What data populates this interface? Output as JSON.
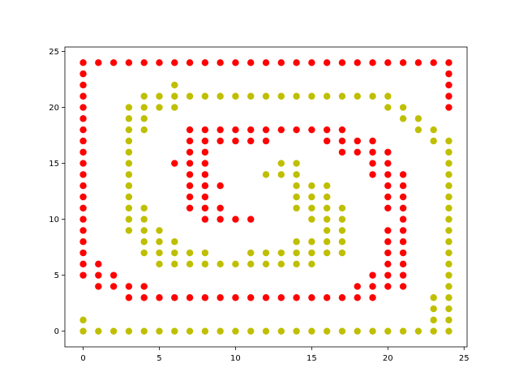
{
  "chart_data": {
    "type": "scatter",
    "title": "",
    "xlabel": "",
    "ylabel": "",
    "xlim": [
      -1.2,
      25.2
    ],
    "ylim": [
      -1.4,
      25.4
    ],
    "xticks": [
      0,
      5,
      10,
      15,
      20,
      25
    ],
    "yticks": [
      0,
      5,
      10,
      15,
      20,
      25
    ],
    "grid": false,
    "series": [
      {
        "color": "#ff0000",
        "points": [
          [
            0,
            24
          ],
          [
            1,
            24
          ],
          [
            2,
            24
          ],
          [
            3,
            24
          ],
          [
            4,
            24
          ],
          [
            5,
            24
          ],
          [
            6,
            24
          ],
          [
            7,
            24
          ],
          [
            8,
            24
          ],
          [
            9,
            24
          ],
          [
            10,
            24
          ],
          [
            11,
            24
          ],
          [
            12,
            24
          ],
          [
            13,
            24
          ],
          [
            14,
            24
          ],
          [
            15,
            24
          ],
          [
            16,
            24
          ],
          [
            17,
            24
          ],
          [
            18,
            24
          ],
          [
            19,
            24
          ],
          [
            20,
            24
          ],
          [
            21,
            24
          ],
          [
            22,
            24
          ],
          [
            23,
            24
          ],
          [
            24,
            24
          ],
          [
            24,
            23
          ],
          [
            24,
            22
          ],
          [
            24,
            21
          ],
          [
            24,
            20
          ],
          [
            0,
            23
          ],
          [
            0,
            22
          ],
          [
            0,
            21
          ],
          [
            0,
            20
          ],
          [
            0,
            19
          ],
          [
            0,
            18
          ],
          [
            0,
            17
          ],
          [
            0,
            16
          ],
          [
            0,
            15
          ],
          [
            0,
            14
          ],
          [
            0,
            13
          ],
          [
            0,
            12
          ],
          [
            0,
            11
          ],
          [
            0,
            10
          ],
          [
            0,
            9
          ],
          [
            0,
            8
          ],
          [
            0,
            7
          ],
          [
            0,
            6
          ],
          [
            0,
            5
          ],
          [
            1,
            6
          ],
          [
            1,
            5
          ],
          [
            1,
            4
          ],
          [
            2,
            5
          ],
          [
            2,
            4
          ],
          [
            3,
            4
          ],
          [
            3,
            3
          ],
          [
            4,
            4
          ],
          [
            4,
            3
          ],
          [
            5,
            3
          ],
          [
            6,
            3
          ],
          [
            7,
            3
          ],
          [
            8,
            3
          ],
          [
            9,
            3
          ],
          [
            10,
            3
          ],
          [
            11,
            3
          ],
          [
            12,
            3
          ],
          [
            13,
            3
          ],
          [
            14,
            3
          ],
          [
            15,
            3
          ],
          [
            16,
            3
          ],
          [
            17,
            3
          ],
          [
            18,
            3
          ],
          [
            19,
            3
          ],
          [
            18,
            4
          ],
          [
            19,
            5
          ],
          [
            19,
            4
          ],
          [
            20,
            6
          ],
          [
            20,
            5
          ],
          [
            20,
            4
          ],
          [
            21,
            5
          ],
          [
            21,
            4
          ],
          [
            20,
            9
          ],
          [
            20,
            8
          ],
          [
            20,
            7
          ],
          [
            21,
            9
          ],
          [
            21,
            8
          ],
          [
            21,
            7
          ],
          [
            21,
            6
          ],
          [
            20,
            16
          ],
          [
            20,
            15
          ],
          [
            20,
            14
          ],
          [
            20,
            13
          ],
          [
            20,
            12
          ],
          [
            20,
            11
          ],
          [
            21,
            14
          ],
          [
            21,
            13
          ],
          [
            21,
            12
          ],
          [
            21,
            11
          ],
          [
            21,
            10
          ],
          [
            7,
            18
          ],
          [
            8,
            18
          ],
          [
            9,
            18
          ],
          [
            10,
            18
          ],
          [
            11,
            18
          ],
          [
            12,
            18
          ],
          [
            13,
            18
          ],
          [
            14,
            18
          ],
          [
            15,
            18
          ],
          [
            16,
            18
          ],
          [
            17,
            18
          ],
          [
            9,
            17
          ],
          [
            10,
            17
          ],
          [
            11,
            17
          ],
          [
            12,
            17
          ],
          [
            16,
            17
          ],
          [
            17,
            17
          ],
          [
            18,
            17
          ],
          [
            19,
            17
          ],
          [
            17,
            16
          ],
          [
            18,
            16
          ],
          [
            19,
            16
          ],
          [
            19,
            15
          ],
          [
            19,
            14
          ],
          [
            7,
            17
          ],
          [
            7,
            16
          ],
          [
            7,
            15
          ],
          [
            7,
            14
          ],
          [
            7,
            13
          ],
          [
            7,
            12
          ],
          [
            7,
            11
          ],
          [
            8,
            17
          ],
          [
            8,
            16
          ],
          [
            8,
            15
          ],
          [
            8,
            14
          ],
          [
            8,
            13
          ],
          [
            8,
            12
          ],
          [
            8,
            11
          ],
          [
            8,
            10
          ],
          [
            6,
            15
          ],
          [
            9,
            13
          ],
          [
            9,
            11
          ],
          [
            9,
            10
          ],
          [
            10,
            10
          ],
          [
            11,
            10
          ]
        ]
      },
      {
        "color": "#bfbf00",
        "points": [
          [
            0,
            1
          ],
          [
            0,
            0
          ],
          [
            1,
            0
          ],
          [
            2,
            0
          ],
          [
            3,
            0
          ],
          [
            4,
            0
          ],
          [
            5,
            0
          ],
          [
            6,
            0
          ],
          [
            7,
            0
          ],
          [
            8,
            0
          ],
          [
            9,
            0
          ],
          [
            10,
            0
          ],
          [
            11,
            0
          ],
          [
            12,
            0
          ],
          [
            13,
            0
          ],
          [
            14,
            0
          ],
          [
            15,
            0
          ],
          [
            16,
            0
          ],
          [
            17,
            0
          ],
          [
            18,
            0
          ],
          [
            19,
            0
          ],
          [
            20,
            0
          ],
          [
            21,
            0
          ],
          [
            22,
            0
          ],
          [
            23,
            0
          ],
          [
            24,
            0
          ],
          [
            23,
            3
          ],
          [
            23,
            2
          ],
          [
            23,
            1
          ],
          [
            24,
            17
          ],
          [
            24,
            16
          ],
          [
            24,
            15
          ],
          [
            24,
            14
          ],
          [
            24,
            13
          ],
          [
            24,
            12
          ],
          [
            24,
            11
          ],
          [
            24,
            10
          ],
          [
            24,
            9
          ],
          [
            24,
            8
          ],
          [
            24,
            7
          ],
          [
            24,
            6
          ],
          [
            24,
            5
          ],
          [
            24,
            4
          ],
          [
            24,
            3
          ],
          [
            24,
            2
          ],
          [
            24,
            1
          ],
          [
            23,
            18
          ],
          [
            23,
            17
          ],
          [
            22,
            19
          ],
          [
            22,
            18
          ],
          [
            21,
            20
          ],
          [
            21,
            19
          ],
          [
            20,
            21
          ],
          [
            20,
            20
          ],
          [
            6,
            22
          ],
          [
            4,
            21
          ],
          [
            5,
            21
          ],
          [
            6,
            21
          ],
          [
            7,
            21
          ],
          [
            8,
            21
          ],
          [
            9,
            21
          ],
          [
            10,
            21
          ],
          [
            11,
            21
          ],
          [
            12,
            21
          ],
          [
            13,
            21
          ],
          [
            14,
            21
          ],
          [
            15,
            21
          ],
          [
            16,
            21
          ],
          [
            17,
            21
          ],
          [
            18,
            21
          ],
          [
            19,
            21
          ],
          [
            3,
            20
          ],
          [
            4,
            20
          ],
          [
            5,
            20
          ],
          [
            6,
            20
          ],
          [
            3,
            19
          ],
          [
            4,
            19
          ],
          [
            3,
            18
          ],
          [
            4,
            18
          ],
          [
            3,
            17
          ],
          [
            3,
            16
          ],
          [
            3,
            15
          ],
          [
            3,
            14
          ],
          [
            3,
            13
          ],
          [
            3,
            12
          ],
          [
            3,
            11
          ],
          [
            3,
            10
          ],
          [
            3,
            9
          ],
          [
            4,
            11
          ],
          [
            4,
            10
          ],
          [
            4,
            9
          ],
          [
            4,
            8
          ],
          [
            4,
            7
          ],
          [
            5,
            9
          ],
          [
            5,
            8
          ],
          [
            5,
            7
          ],
          [
            5,
            6
          ],
          [
            6,
            8
          ],
          [
            6,
            7
          ],
          [
            6,
            6
          ],
          [
            7,
            7
          ],
          [
            7,
            6
          ],
          [
            8,
            7
          ],
          [
            8,
            6
          ],
          [
            9,
            6
          ],
          [
            10,
            6
          ],
          [
            11,
            7
          ],
          [
            11,
            6
          ],
          [
            12,
            7
          ],
          [
            12,
            6
          ],
          [
            13,
            7
          ],
          [
            13,
            6
          ],
          [
            14,
            8
          ],
          [
            14,
            7
          ],
          [
            14,
            6
          ],
          [
            15,
            8
          ],
          [
            15,
            7
          ],
          [
            15,
            6
          ],
          [
            16,
            9
          ],
          [
            16,
            8
          ],
          [
            16,
            7
          ],
          [
            17,
            11
          ],
          [
            17,
            10
          ],
          [
            17,
            9
          ],
          [
            17,
            8
          ],
          [
            17,
            7
          ],
          [
            16,
            13
          ],
          [
            16,
            12
          ],
          [
            16,
            11
          ],
          [
            16,
            10
          ],
          [
            15,
            13
          ],
          [
            15,
            12
          ],
          [
            15,
            11
          ],
          [
            15,
            10
          ],
          [
            12,
            14
          ],
          [
            13,
            15
          ],
          [
            13,
            14
          ],
          [
            14,
            15
          ],
          [
            14,
            14
          ],
          [
            14,
            13
          ],
          [
            14,
            12
          ],
          [
            14,
            11
          ]
        ]
      }
    ]
  }
}
